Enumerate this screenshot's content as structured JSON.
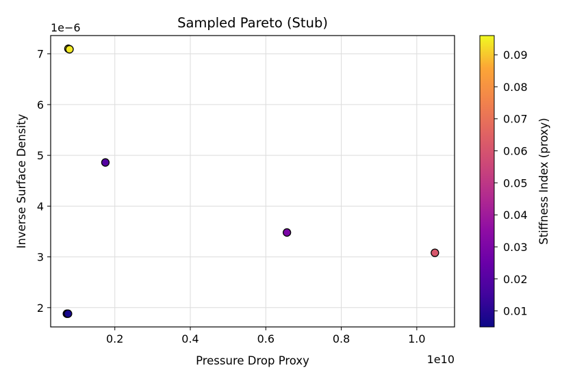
{
  "chart_data": {
    "type": "scatter",
    "title": "Sampled Pareto (Stub)",
    "xlabel": "Pressure Drop Proxy",
    "ylabel": "Inverse Surface Density",
    "x_offset_label": "1e10",
    "y_offset_label": "1e−6",
    "xlim": [
      0.03,
      1.1
    ],
    "ylim": [
      1.62,
      7.36
    ],
    "x_ticks": [
      0.2,
      0.4,
      0.6,
      0.8,
      1.0
    ],
    "x_tick_labels": [
      "0.2",
      "0.4",
      "0.6",
      "0.8",
      "1.0"
    ],
    "y_ticks": [
      2,
      3,
      4,
      5,
      6,
      7
    ],
    "y_tick_labels": [
      "2",
      "3",
      "4",
      "5",
      "6",
      "7"
    ],
    "grid": true,
    "colorbar": {
      "label": "Stiffness Index (proxy)",
      "colormap": "plasma",
      "range": [
        0.005,
        0.096
      ],
      "ticks": [
        0.01,
        0.02,
        0.03,
        0.04,
        0.05,
        0.06,
        0.07,
        0.08,
        0.09
      ],
      "tick_labels": [
        "0.01",
        "0.02",
        "0.03",
        "0.04",
        "0.05",
        "0.06",
        "0.07",
        "0.08",
        "0.09"
      ]
    },
    "points": [
      {
        "x": 0.077,
        "y": 7.1,
        "c": 0.095
      },
      {
        "x": 0.08,
        "y": 7.09,
        "c": 0.094
      },
      {
        "x": 0.175,
        "y": 4.86,
        "c": 0.02
      },
      {
        "x": 0.656,
        "y": 3.48,
        "c": 0.03
      },
      {
        "x": 1.048,
        "y": 3.08,
        "c": 0.061
      },
      {
        "x": 0.073,
        "y": 1.88,
        "c": 0.006
      },
      {
        "x": 0.076,
        "y": 1.88,
        "c": 0.007
      }
    ]
  }
}
